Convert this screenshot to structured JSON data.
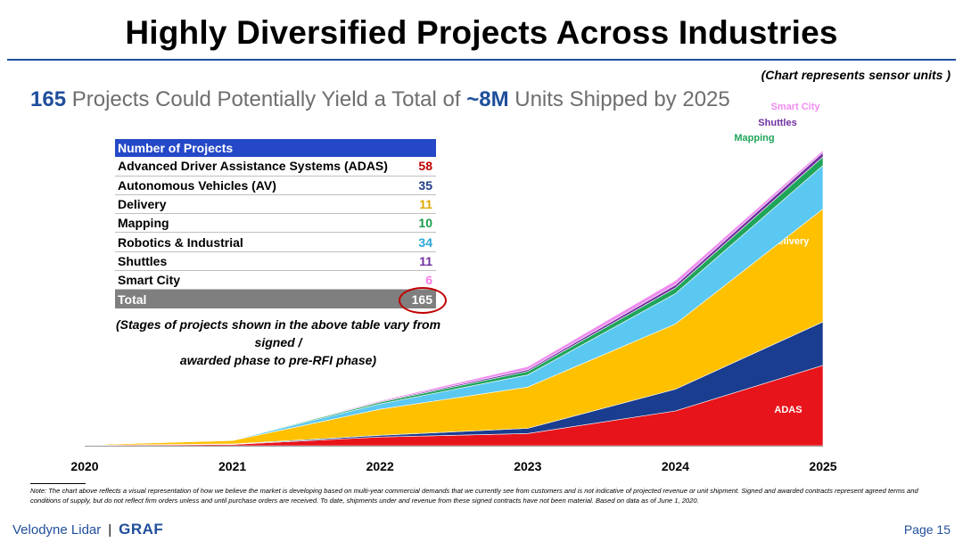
{
  "title": "Highly Diversified Projects Across Industries",
  "chart_note": "(Chart represents sensor units )",
  "headline": {
    "count": "165",
    "text1": " Projects Could Potentially Yield a Total of ",
    "units": "~8M",
    "text2": " Units Shipped by 2025"
  },
  "table": {
    "header": "Number of Projects",
    "rows": [
      {
        "label": "Advanced Driver Assistance Systems (ADAS)",
        "value": "58",
        "color": "#c00000"
      },
      {
        "label": "Autonomous Vehicles (AV)",
        "value": "35",
        "color": "#1f3c88"
      },
      {
        "label": "Delivery",
        "value": "11",
        "color": "#e0a800"
      },
      {
        "label": "Mapping",
        "value": "10",
        "color": "#1a9c4a"
      },
      {
        "label": "Robotics & Industrial",
        "value": "34",
        "color": "#2aa6d8"
      },
      {
        "label": "Shuttles",
        "value": "11",
        "color": "#7030a0"
      },
      {
        "label": "Smart City",
        "value": "6",
        "color": "#ff7de9"
      }
    ],
    "total_label": "Total",
    "total_value": "165"
  },
  "stages_note_line1": "(Stages of projects shown in the above table vary from signed /",
  "stages_note_line2": "awarded phase to pre-RFI phase)",
  "chart_data": {
    "type": "area",
    "stacked": true,
    "x": [
      "2020",
      "2021",
      "2022",
      "2023",
      "2024",
      "2025"
    ],
    "series": [
      {
        "name": "ADAS",
        "color": "#e8141b",
        "values": [
          0.01,
          0.03,
          0.2,
          0.28,
          0.8,
          1.85
        ]
      },
      {
        "name": "AV",
        "color": "#1a3d8f",
        "values": [
          0.0,
          0.01,
          0.04,
          0.12,
          0.5,
          1.0
        ]
      },
      {
        "name": "Delivery",
        "color": "#ffc000",
        "values": [
          0.01,
          0.08,
          0.6,
          0.95,
          1.5,
          2.6
        ]
      },
      {
        "name": "Robotics & Industrial",
        "color": "#5bc8f2",
        "values": [
          0.0,
          0.01,
          0.12,
          0.28,
          0.7,
          1.0
        ]
      },
      {
        "name": "Mapping",
        "color": "#1fa55a",
        "values": [
          0.0,
          0.005,
          0.04,
          0.08,
          0.13,
          0.2
        ]
      },
      {
        "name": "Shuttles",
        "color": "#7030a0",
        "values": [
          0.0,
          0.002,
          0.02,
          0.04,
          0.07,
          0.1
        ]
      },
      {
        "name": "Smart City",
        "color": "#f08cf0",
        "values": [
          0.0,
          0.003,
          0.02,
          0.07,
          0.1,
          0.05
        ]
      }
    ],
    "ylim": [
      0,
      8
    ]
  },
  "footnote": "Note: The chart above reflects a visual representation of how we believe the market is developing based on multi-year commercial demands that we currently see from customers and is not indicative of projected revenue or unit shipment. Signed and awarded contracts represent agreed terms and conditions of supply, but do not reflect firm orders unless and until purchase orders are received. To date, shipments under and revenue from these signed contracts have not been material. Based on data as of June 1, 2020.",
  "brand": {
    "company": "Velodyne Lidar",
    "separator": "|",
    "partner": "GRAF"
  },
  "page_label": "Page 15"
}
